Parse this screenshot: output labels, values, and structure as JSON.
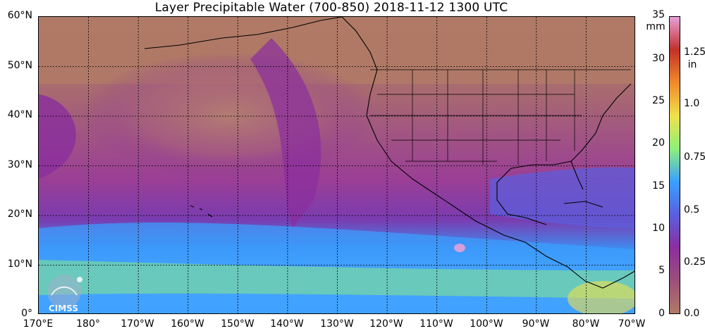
{
  "title": "Layer Precipitable Water (700-850)  2018-11-12 1300 UTC",
  "lat_labels": [
    "60°N",
    "50°N",
    "40°N",
    "30°N",
    "20°N",
    "10°N",
    "0°"
  ],
  "lon_labels": [
    "170°E",
    "180°",
    "170°W",
    "160°W",
    "150°W",
    "140°W",
    "130°W",
    "120°W",
    "110°W",
    "100°W",
    "90°W",
    "80°W",
    "70°W"
  ],
  "colorbar": {
    "mm_unit": "mm",
    "in_unit": "in",
    "mm_ticks": [
      "35",
      "30",
      "25",
      "20",
      "15",
      "10",
      "5",
      "0"
    ],
    "in_ticks": [
      "1.25",
      "1.0",
      "0.75",
      "0.5",
      "0.25",
      "0.0"
    ],
    "in_ticks_values": [
      1.25,
      1.0,
      0.75,
      0.5,
      0.25,
      0.0
    ],
    "mm_range": [
      0,
      35
    ],
    "colors": [
      "#b07a66",
      "#9c4f7a",
      "#8a2e9e",
      "#5a5fe0",
      "#3aa0ff",
      "#8ef07a",
      "#f0e14a",
      "#f08a2a",
      "#c2302a",
      "#e6a0d8"
    ]
  },
  "logo": "CIMSS"
}
